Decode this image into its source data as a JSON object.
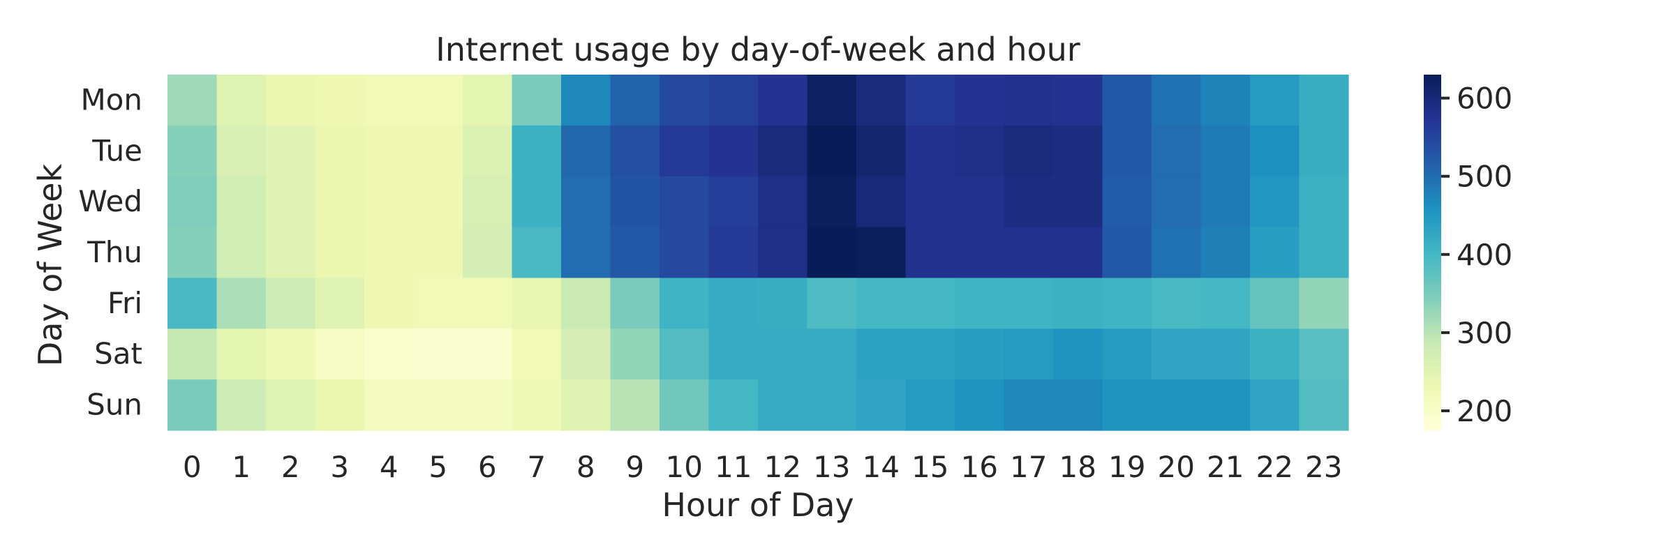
{
  "chart_data": {
    "type": "heatmap",
    "title": "Internet usage by day-of-week and hour",
    "xlabel": "Hour of Day",
    "ylabel": "Day of Week",
    "x_categories": [
      "0",
      "1",
      "2",
      "3",
      "4",
      "5",
      "6",
      "7",
      "8",
      "9",
      "10",
      "11",
      "12",
      "13",
      "14",
      "15",
      "16",
      "17",
      "18",
      "19",
      "20",
      "21",
      "22",
      "23"
    ],
    "y_categories": [
      "Mon",
      "Tue",
      "Wed",
      "Thu",
      "Fri",
      "Sat",
      "Sun"
    ],
    "values": [
      [
        320,
        255,
        235,
        230,
        220,
        220,
        245,
        350,
        470,
        510,
        545,
        555,
        575,
        620,
        595,
        565,
        575,
        580,
        575,
        525,
        495,
        475,
        445,
        415
      ],
      [
        340,
        265,
        250,
        235,
        230,
        230,
        260,
        410,
        505,
        535,
        565,
        575,
        595,
        630,
        610,
        580,
        585,
        595,
        590,
        525,
        500,
        485,
        460,
        415
      ],
      [
        345,
        275,
        250,
        235,
        230,
        230,
        265,
        410,
        500,
        530,
        545,
        560,
        585,
        625,
        600,
        580,
        580,
        590,
        590,
        520,
        500,
        485,
        450,
        410
      ],
      [
        340,
        275,
        250,
        235,
        230,
        230,
        270,
        395,
        500,
        525,
        545,
        565,
        585,
        635,
        625,
        580,
        580,
        580,
        580,
        525,
        495,
        480,
        440,
        410
      ],
      [
        395,
        310,
        280,
        255,
        230,
        220,
        220,
        240,
        285,
        350,
        405,
        420,
        415,
        390,
        400,
        400,
        405,
        405,
        410,
        405,
        395,
        400,
        370,
        330
      ],
      [
        290,
        245,
        225,
        205,
        195,
        190,
        190,
        220,
        270,
        330,
        385,
        420,
        420,
        420,
        435,
        435,
        440,
        445,
        455,
        445,
        430,
        430,
        410,
        380
      ],
      [
        350,
        280,
        255,
        235,
        215,
        210,
        210,
        225,
        250,
        300,
        360,
        400,
        420,
        420,
        430,
        445,
        455,
        470,
        470,
        455,
        455,
        455,
        430,
        385
      ]
    ],
    "colorbar": {
      "colormap": "YlGnBu",
      "range": [
        175,
        630
      ],
      "ticks": [
        200,
        300,
        400,
        500,
        600
      ]
    },
    "grid": false
  }
}
